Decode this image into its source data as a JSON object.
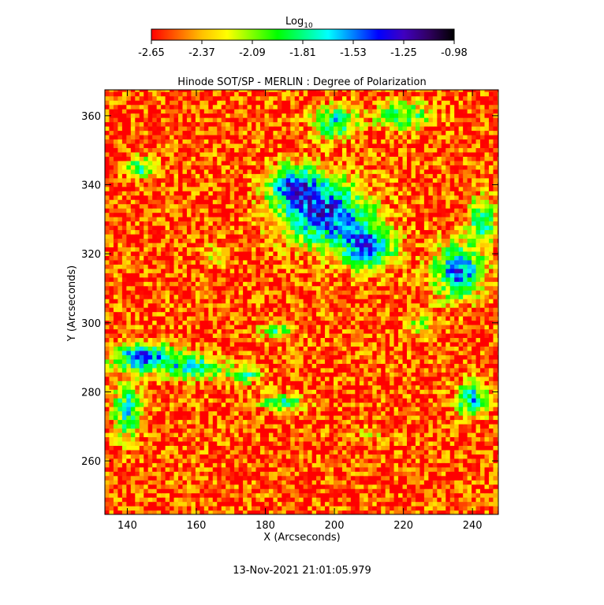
{
  "chart_data": {
    "type": "heatmap",
    "title": "Hinode SOT/SP - MERLIN : Degree of Polarization",
    "xlabel": "X (Arcseconds)",
    "ylabel": "Y (Arcseconds)",
    "xlim": [
      133.5,
      247.5
    ],
    "ylim": [
      244.5,
      367.5
    ],
    "xticks": [
      "140",
      "160",
      "180",
      "200",
      "220",
      "240"
    ],
    "xtick_values": [
      140,
      160,
      180,
      200,
      220,
      240
    ],
    "yticks": [
      "260",
      "280",
      "300",
      "320",
      "340",
      "360"
    ],
    "ytick_values": [
      260,
      280,
      300,
      320,
      340,
      360
    ],
    "colorbar": {
      "label_base": "Log",
      "label_sub": "10",
      "min": -2.65,
      "max": -0.98,
      "ticks": [
        "-2.65",
        "-2.37",
        "-2.09",
        "-1.81",
        "-1.53",
        "-1.25",
        "-0.98"
      ],
      "colormap": [
        "#ff0000",
        "#ff6000",
        "#ffc000",
        "#ffff00",
        "#80ff00",
        "#00ff00",
        "#00ff80",
        "#00ffff",
        "#0080ff",
        "#0000ff",
        "#4000c0",
        "#300060",
        "#000000"
      ]
    },
    "features": "red-dominated field (~-2.5) with blue/purple network clusters (~-1.2) near X 180-215 Y 315-345, X 225-245 Y 305-325, X 135-165 Y 280-295, Y 280-290 X 140-175, Y 270-285 X 235-245",
    "timestamp": "13-Nov-2021 21:01:05.979"
  }
}
